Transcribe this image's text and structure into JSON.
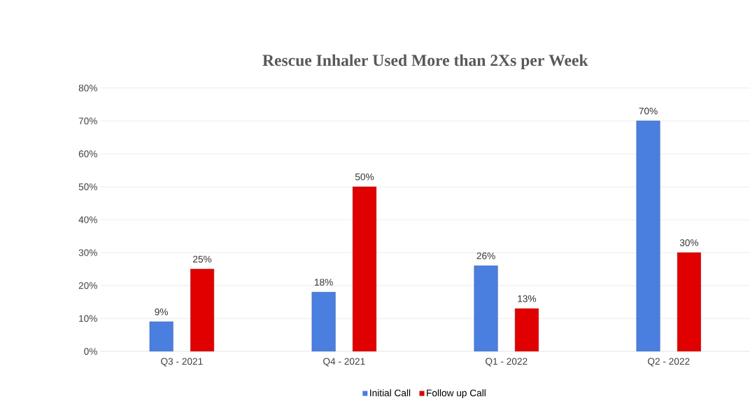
{
  "chart_data": {
    "type": "bar",
    "title": "Rescue Inhaler Used More than 2Xs per Week",
    "categories": [
      "Q3 - 2021",
      "Q4 - 2021",
      "Q1 - 2022",
      "Q2 - 2022"
    ],
    "series": [
      {
        "name": "Initial Call",
        "color": "#4a7fe0",
        "values": [
          9,
          18,
          26,
          70
        ],
        "value_labels": [
          "9%",
          "18%",
          "26%",
          "70%"
        ]
      },
      {
        "name": "Follow up Call",
        "color": "#e00000",
        "values": [
          25,
          50,
          13,
          30
        ],
        "value_labels": [
          "25%",
          "50%",
          "13%",
          "30%"
        ]
      }
    ],
    "ylim": [
      0,
      80
    ],
    "yticks": [
      {
        "value": 0,
        "label": "0%"
      },
      {
        "value": 10,
        "label": "10%"
      },
      {
        "value": 20,
        "label": "20%"
      },
      {
        "value": 30,
        "label": "30%"
      },
      {
        "value": 40,
        "label": "40%"
      },
      {
        "value": 50,
        "label": "50%"
      },
      {
        "value": 60,
        "label": "60%"
      },
      {
        "value": 70,
        "label": "70%"
      },
      {
        "value": 80,
        "label": "80%"
      }
    ],
    "grid": "y",
    "legend": "bottom"
  }
}
